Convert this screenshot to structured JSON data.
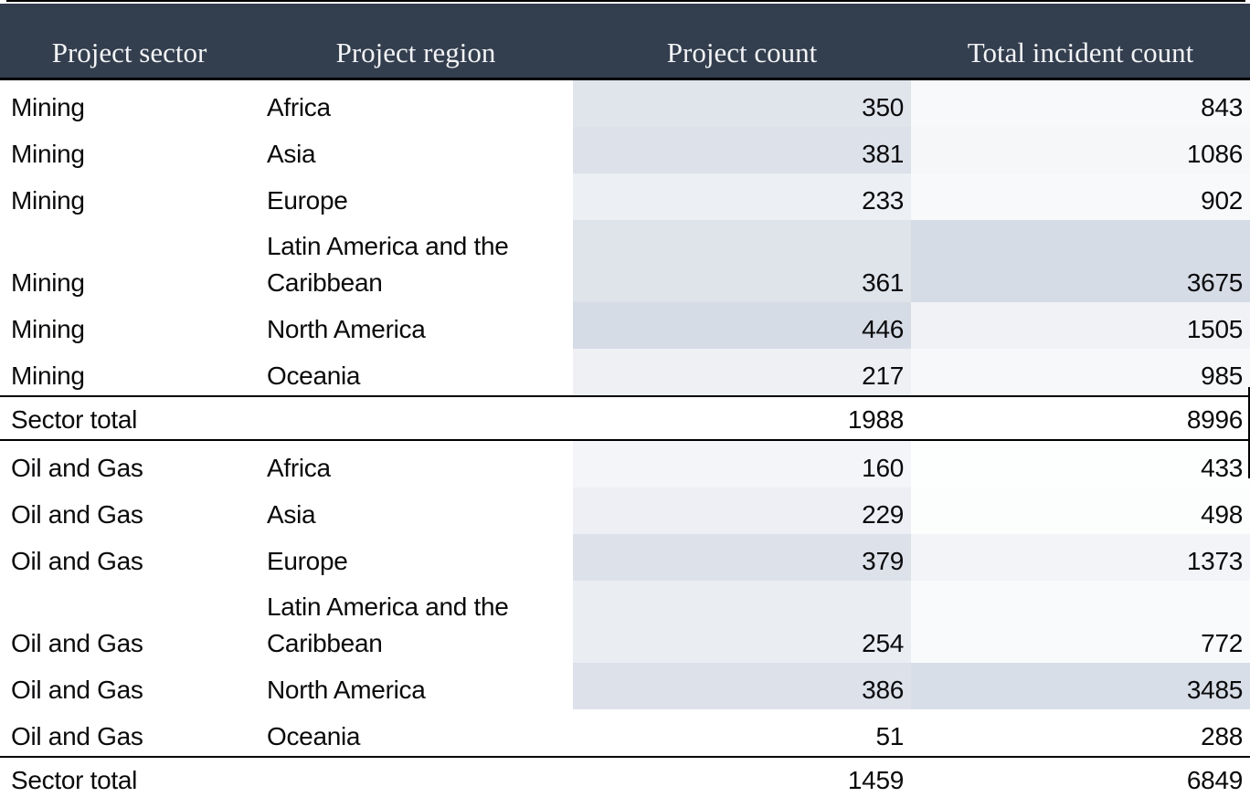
{
  "chart_data": {
    "type": "table",
    "columns": [
      "Project sector",
      "Project region",
      "Project count",
      "Total incident count"
    ],
    "sections": [
      {
        "sector": "Mining",
        "rows": [
          {
            "sector": "Mining",
            "region": "Africa",
            "project_count": 350,
            "incident_count": 843
          },
          {
            "sector": "Mining",
            "region": "Asia",
            "project_count": 381,
            "incident_count": 1086
          },
          {
            "sector": "Mining",
            "region": "Europe",
            "project_count": 233,
            "incident_count": 902
          },
          {
            "sector": "Mining",
            "region": "Latin America and the Caribbean",
            "project_count": 361,
            "incident_count": 3675
          },
          {
            "sector": "Mining",
            "region": "North America",
            "project_count": 446,
            "incident_count": 1505
          },
          {
            "sector": "Mining",
            "region": "Oceania",
            "project_count": 217,
            "incident_count": 985
          }
        ],
        "total": {
          "label": "Sector total",
          "project_count": 1988,
          "incident_count": 8996
        }
      },
      {
        "sector": "Oil and Gas",
        "rows": [
          {
            "sector": "Oil and Gas",
            "region": "Africa",
            "project_count": 160,
            "incident_count": 433
          },
          {
            "sector": "Oil and Gas",
            "region": "Asia",
            "project_count": 229,
            "incident_count": 498
          },
          {
            "sector": "Oil and Gas",
            "region": "Europe",
            "project_count": 379,
            "incident_count": 1373
          },
          {
            "sector": "Oil and Gas",
            "region": "Latin America and the Caribbean",
            "project_count": 254,
            "incident_count": 772
          },
          {
            "sector": "Oil and Gas",
            "region": "North America",
            "project_count": 386,
            "incident_count": 3485
          },
          {
            "sector": "Oil and Gas",
            "region": "Oceania",
            "project_count": 51,
            "incident_count": 288
          }
        ],
        "total": {
          "label": "Sector total",
          "project_count": 1459,
          "incident_count": 6849
        }
      }
    ],
    "style": {
      "header_bg": "#333e4e",
      "header_text": "#f3f4f6",
      "body_text": "#0a0a0c",
      "rule_color": "#000000",
      "heat_min_color": "#ffffff",
      "heat_max_color": "#d6dce6"
    }
  }
}
